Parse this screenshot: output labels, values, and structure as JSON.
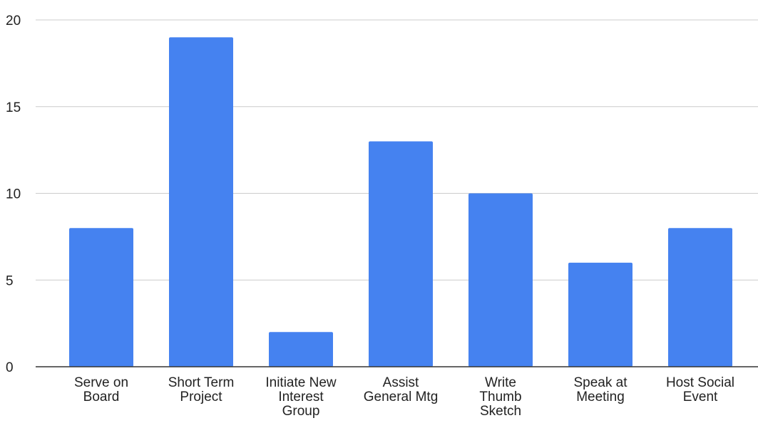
{
  "chart_data": {
    "type": "bar",
    "title": "",
    "xlabel": "",
    "ylabel": "",
    "categories": [
      "Serve on Board",
      "Short Term Project",
      "Initiate New Interest Group",
      "Assist General Mtg",
      "Write Thumb Sketch",
      "Speak at Meeting",
      "Host Social Event"
    ],
    "category_label_lines": [
      [
        "Serve on",
        "Board"
      ],
      [
        "Short Term",
        "Project"
      ],
      [
        "Initiate New",
        "Interest",
        "Group"
      ],
      [
        "Assist",
        "General Mtg"
      ],
      [
        "Write",
        "Thumb",
        "Sketch"
      ],
      [
        "Speak at",
        "Meeting"
      ],
      [
        "Host Social",
        "Event"
      ]
    ],
    "values": [
      8,
      19,
      2,
      13,
      10,
      6,
      8
    ],
    "ylim": [
      0,
      20
    ],
    "yticks": [
      0,
      5,
      10,
      15,
      20
    ],
    "grid": true,
    "legend": "none",
    "bar_color": "#4582f0"
  }
}
